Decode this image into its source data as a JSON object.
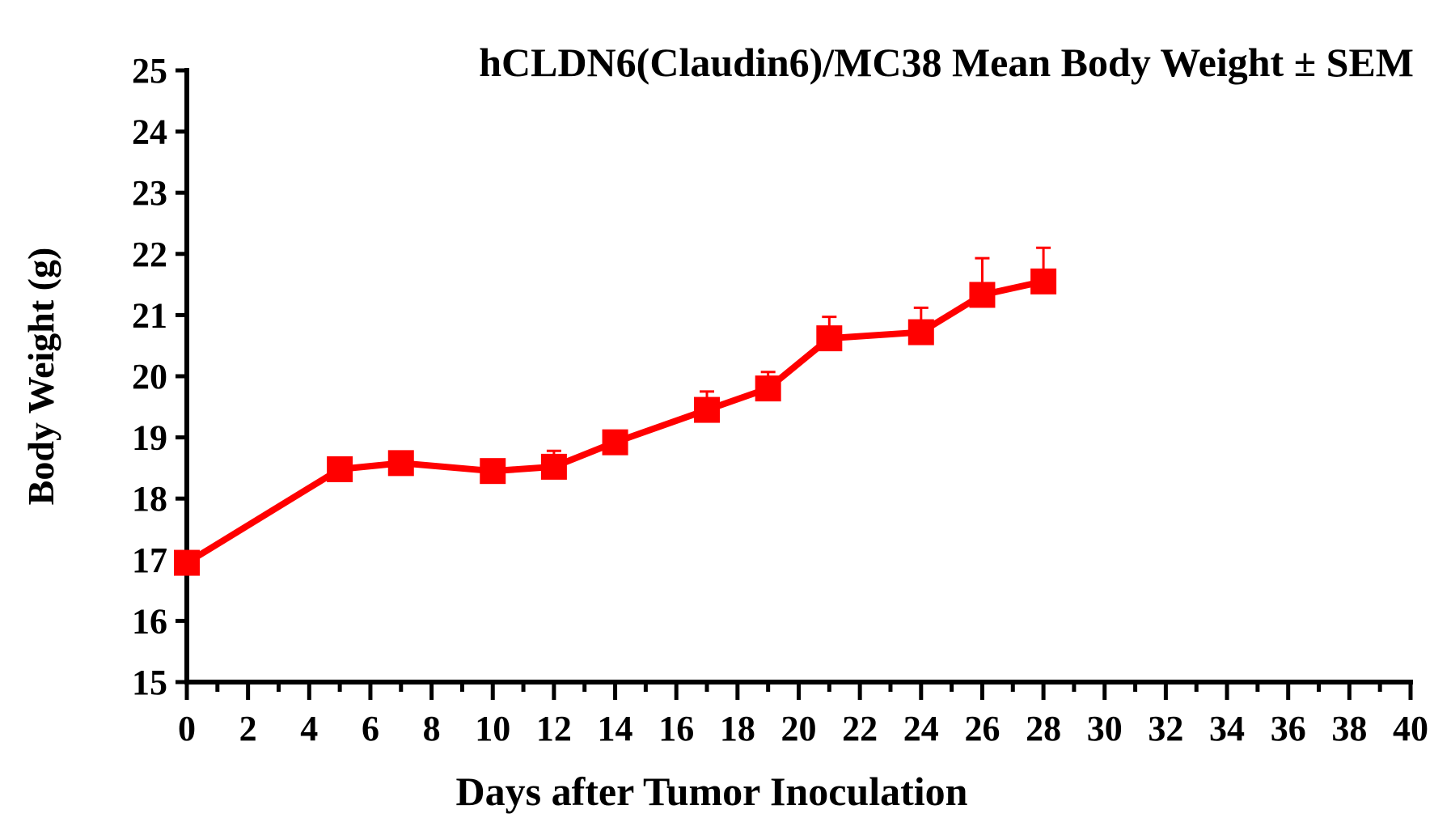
{
  "chart_data": {
    "type": "line",
    "title": "hCLDN6(Claudin6)/MC38 Mean Body Weight ± SEM",
    "xlabel": "Days after Tumor Inoculation",
    "ylabel": "Body Weight (g)",
    "xlim": [
      0,
      40
    ],
    "ylim": [
      15,
      25
    ],
    "xticks": [
      "0",
      "2",
      "4",
      "6",
      "8",
      "10",
      "12",
      "14",
      "16",
      "18",
      "20",
      "22",
      "24",
      "26",
      "28",
      "30",
      "32",
      "34",
      "36",
      "38",
      "40"
    ],
    "yticks": [
      "15",
      "16",
      "17",
      "18",
      "19",
      "20",
      "21",
      "22",
      "23",
      "24",
      "25"
    ],
    "grid": false,
    "legend": "none",
    "series": [
      {
        "color": "#ff0000",
        "marker": "square",
        "x": [
          0,
          5,
          7,
          10,
          12,
          14,
          17,
          19,
          21,
          24,
          26,
          28
        ],
        "y": [
          16.95,
          18.48,
          18.58,
          18.45,
          18.52,
          18.92,
          19.45,
          19.8,
          20.62,
          20.72,
          21.33,
          21.55
        ],
        "sem": [
          0.05,
          0.1,
          0.1,
          0.1,
          0.26,
          0.12,
          0.3,
          0.27,
          0.35,
          0.4,
          0.6,
          0.55
        ]
      }
    ]
  }
}
